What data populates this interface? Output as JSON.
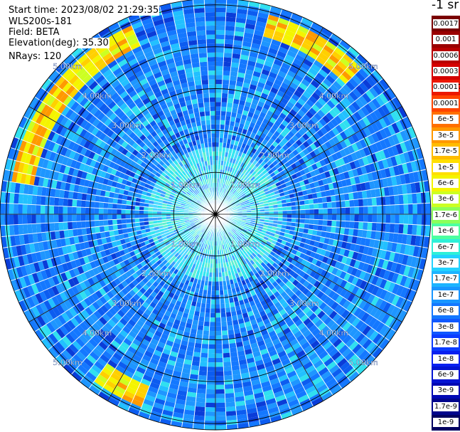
{
  "info": {
    "start_time": "Start time: 2023/08/02 21:29:35",
    "instrument": "WLS200s-181",
    "field": "Field: BETA",
    "elevation": "Elevation(deg): 35.30",
    "nrays": "NRays: 120"
  },
  "colorbar": {
    "unit_label": "-1 sr",
    "labels": [
      "0.0017",
      "0.001",
      "0.0006",
      "0.0003",
      "0.00017",
      "0.0001",
      "6e-5",
      "3e-5",
      "1.7e-5",
      "1e-5",
      "6e-6",
      "3e-6",
      "1.7e-6",
      "1e-6",
      "6e-7",
      "3e-7",
      "1.7e-7",
      "1e-7",
      "6e-8",
      "3e-8",
      "1.7e-8",
      "1e-8",
      "6e-9",
      "3e-9",
      "1.7e-9",
      "1e-9"
    ],
    "colors": [
      "#7a0000",
      "#9a0000",
      "#b80000",
      "#d40000",
      "#ec1800",
      "#ff4400",
      "#ff7000",
      "#ff9800",
      "#ffbc00",
      "#ffdf00",
      "#f4f400",
      "#ccff22",
      "#8cff5a",
      "#4cffa0",
      "#2ef0d8",
      "#22d2ff",
      "#1cb4ff",
      "#1896ff",
      "#1478ff",
      "#1058ff",
      "#0c3cff",
      "#0820f0",
      "#0414d2",
      "#0008b4",
      "#00048c",
      "#000060"
    ]
  },
  "chart_data": {
    "type": "heatmap",
    "projection": "polar-ppi",
    "field": "BETA",
    "nrays": 120,
    "range_rings_km": [
      1.0,
      2.0,
      3.0,
      4.0,
      5.0
    ],
    "ring_labels": [
      "1.00km",
      "2.00km",
      "3.00km",
      "4.00km",
      "5.00km"
    ],
    "max_range_km": 5.15,
    "colorscale": "log",
    "value_range": [
      1e-09,
      0.0017
    ],
    "field_pattern": [
      {
        "range_km": [
          0.0,
          0.5
        ],
        "dominant_color": "mid-blue"
      },
      {
        "range_km": [
          0.5,
          1.6
        ],
        "dominant_color": "light-cyan"
      },
      {
        "range_km": [
          1.6,
          4.4
        ],
        "dominant_color": "blue / cyan mix"
      },
      {
        "range_km": [
          4.4,
          4.9
        ],
        "dominant_color": "yellow-orange",
        "azimuth_sectors_deg": [
          [
            15,
            45
          ],
          [
            200,
            215
          ],
          [
            280,
            335
          ]
        ]
      }
    ]
  }
}
